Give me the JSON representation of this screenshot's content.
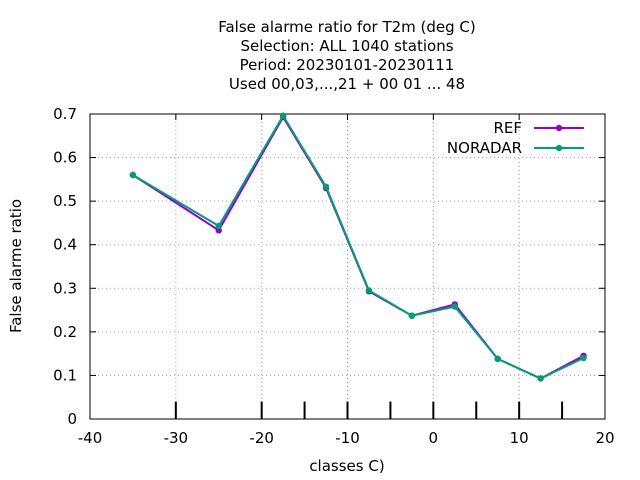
{
  "chart_data": {
    "type": "line",
    "title_lines": [
      "False alarme ratio  for T2m (deg C)",
      "Selection: ALL   1040 stations",
      "Period: 20230101-20230111",
      "Used  00,03,...,21  + 00 01 ... 48"
    ],
    "xlabel": "classes C)",
    "ylabel": "False alarme ratio",
    "xlim": [
      -40,
      20
    ],
    "ylim": [
      0,
      0.7
    ],
    "x_ticks": [
      -40,
      -30,
      -20,
      -10,
      0,
      10,
      20
    ],
    "y_ticks": [
      0,
      0.1,
      0.2,
      0.3,
      0.4,
      0.5,
      0.6,
      0.7
    ],
    "class_marks": [
      -30,
      -20,
      -15,
      -10,
      -5,
      0,
      5,
      10,
      15
    ],
    "grid": true,
    "legend_position": "top-right",
    "x": [
      -35,
      -25,
      -17.5,
      -12.5,
      -7.5,
      -2.5,
      2.5,
      7.5,
      12.5,
      17.5
    ],
    "series": [
      {
        "name": "REF",
        "color": "#9400d3",
        "values": [
          0.56,
          0.433,
          0.693,
          0.53,
          0.293,
          0.237,
          0.263,
          0.138,
          0.093,
          0.145
        ]
      },
      {
        "name": "NORADAR",
        "color": "#009e73",
        "values": [
          0.56,
          0.443,
          0.696,
          0.533,
          0.295,
          0.237,
          0.258,
          0.138,
          0.093,
          0.14
        ]
      }
    ]
  }
}
